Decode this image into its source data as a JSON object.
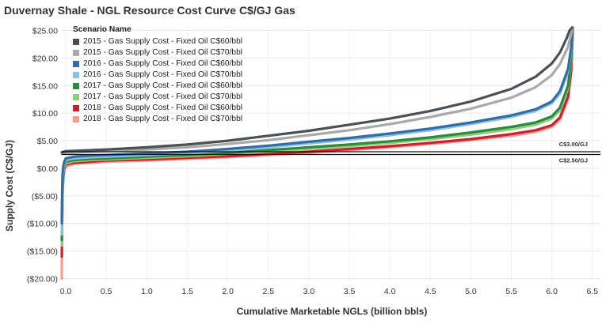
{
  "chart_data": {
    "type": "line",
    "title": "Duvernay Shale - NGL Resource Cost Curve C$/GJ Gas",
    "xlabel": "Cumulative Marketable NGLs (billion bbls)",
    "ylabel": "Supply Cost (C$/GJ)",
    "xlim": [
      -0.05,
      6.6
    ],
    "ylim": [
      -20.5,
      25.5
    ],
    "x_ticks": [
      0.0,
      0.5,
      1.0,
      1.5,
      2.0,
      2.5,
      3.0,
      3.5,
      4.0,
      4.5,
      5.0,
      5.5,
      6.0,
      6.5
    ],
    "x_tick_labels": [
      "0.0",
      "0.5",
      "1.0",
      "1.5",
      "2.0",
      "2.5",
      "3.0",
      "3.5",
      "4.0",
      "4.5",
      "5.0",
      "5.5",
      "6.0",
      "6.5"
    ],
    "y_ticks": [
      -20,
      -15,
      -10,
      -5,
      0,
      5,
      10,
      15,
      20,
      25
    ],
    "y_tick_labels": [
      "($20.00)",
      "($15.00)",
      "($10.00)",
      "($5.00)",
      "$0.00",
      "$5.00",
      "$10.00",
      "$15.00",
      "$20.00",
      "$25.00"
    ],
    "grid": true,
    "legend_title": "Scenario Name",
    "legend_position": "top-left",
    "reference_lines": [
      {
        "value": 3.0,
        "label": "C$3.00/GJ"
      },
      {
        "value": 2.5,
        "label": "C$2.50/GJ"
      }
    ],
    "series": [
      {
        "name": "2015 - Gas Supply Cost - Fixed Oil C$60/bbl",
        "color": "#4a5058",
        "x": [
          -0.05,
          0.0,
          0.5,
          1.0,
          1.5,
          2.0,
          2.5,
          3.0,
          3.5,
          4.0,
          4.5,
          5.0,
          5.5,
          5.8,
          6.0,
          6.1,
          6.18,
          6.22,
          6.25
        ],
        "y": [
          2.9,
          3.1,
          3.4,
          3.8,
          4.3,
          5.0,
          5.9,
          6.8,
          7.9,
          9.0,
          10.4,
          12.1,
          14.4,
          16.6,
          19.0,
          21.0,
          23.5,
          25.0,
          25.5
        ]
      },
      {
        "name": "2015 - Gas Supply Cost - Fixed Oil C$70/bbl",
        "color": "#a9a9a9",
        "x": [
          -0.05,
          0.0,
          0.5,
          1.0,
          1.5,
          2.0,
          2.5,
          3.0,
          3.5,
          4.0,
          4.5,
          5.0,
          5.5,
          5.8,
          6.0,
          6.1,
          6.2,
          6.24,
          6.26
        ],
        "y": [
          2.6,
          2.8,
          3.1,
          3.4,
          3.8,
          4.4,
          5.1,
          6.0,
          6.9,
          8.0,
          9.3,
          10.8,
          12.8,
          14.7,
          16.9,
          18.9,
          22.0,
          24.5,
          25.5
        ]
      },
      {
        "name": "2016 - Gas Supply Cost - Fixed Oil C$60/bbl",
        "color": "#2f6ea5",
        "x": [
          -0.05,
          -0.045,
          -0.04,
          -0.03,
          -0.02,
          0.0,
          0.1,
          0.3,
          0.5,
          1.0,
          1.5,
          2.0,
          2.5,
          3.0,
          3.5,
          4.0,
          4.5,
          5.0,
          5.5,
          5.8,
          6.0,
          6.1,
          6.2,
          6.24,
          6.26
        ],
        "y": [
          -10.0,
          -4.0,
          -1.0,
          0.5,
          1.2,
          1.8,
          2.1,
          2.3,
          2.4,
          2.7,
          3.0,
          3.5,
          4.1,
          4.8,
          5.5,
          6.3,
          7.2,
          8.3,
          9.6,
          10.7,
          12.1,
          14.0,
          18.0,
          22.0,
          25.5
        ]
      },
      {
        "name": "2016 - Gas Supply Cost - Fixed Oil C$70/bbl",
        "color": "#8fbfe3",
        "x": [
          -0.05,
          -0.045,
          -0.04,
          -0.03,
          -0.02,
          0.0,
          0.1,
          0.3,
          0.5,
          1.0,
          1.5,
          2.0,
          2.5,
          3.0,
          3.5,
          4.0,
          4.5,
          5.0,
          5.5,
          5.8,
          6.0,
          6.1,
          6.2,
          6.24,
          6.26
        ],
        "y": [
          -12.0,
          -6.0,
          -2.0,
          0.0,
          0.9,
          1.5,
          1.8,
          2.0,
          2.1,
          2.4,
          2.7,
          3.2,
          3.8,
          4.5,
          5.2,
          6.0,
          6.9,
          8.0,
          9.3,
          10.4,
          11.8,
          13.5,
          17.5,
          21.5,
          25.5
        ]
      },
      {
        "name": "2017 - Gas Supply Cost - Fixed Oil C$60/bbl",
        "color": "#2c8a3c",
        "x": [
          -0.05,
          -0.045,
          -0.04,
          -0.03,
          -0.02,
          0.0,
          0.1,
          0.3,
          0.5,
          1.0,
          1.5,
          2.0,
          2.5,
          3.0,
          3.5,
          4.0,
          4.5,
          5.0,
          5.5,
          5.8,
          6.0,
          6.1,
          6.2,
          6.24,
          6.26
        ],
        "y": [
          -13.0,
          -7.0,
          -3.0,
          -0.5,
          0.6,
          1.2,
          1.5,
          1.7,
          1.8,
          2.1,
          2.4,
          2.8,
          3.3,
          3.8,
          4.3,
          4.9,
          5.6,
          6.5,
          7.5,
          8.3,
          9.4,
          11.0,
          15.0,
          20.0,
          25.5
        ]
      },
      {
        "name": "2017 - Gas Supply Cost - Fixed Oil C$70/bbl",
        "color": "#8fcf79",
        "x": [
          -0.05,
          -0.045,
          -0.04,
          -0.03,
          -0.02,
          0.0,
          0.1,
          0.3,
          0.5,
          1.0,
          1.5,
          2.0,
          2.5,
          3.0,
          3.5,
          4.0,
          4.5,
          5.0,
          5.5,
          5.8,
          6.0,
          6.1,
          6.2,
          6.24,
          6.26
        ],
        "y": [
          -14.0,
          -8.0,
          -3.5,
          -1.0,
          0.3,
          0.9,
          1.3,
          1.5,
          1.6,
          1.9,
          2.2,
          2.6,
          3.0,
          3.5,
          4.0,
          4.6,
          5.3,
          6.1,
          7.1,
          7.9,
          9.0,
          10.5,
          14.5,
          19.5,
          25.5
        ]
      },
      {
        "name": "2018 - Gas Supply Cost - Fixed Oil C$60/bbl",
        "color": "#cc2030",
        "x": [
          -0.05,
          -0.045,
          -0.04,
          -0.03,
          -0.02,
          0.0,
          0.1,
          0.3,
          0.5,
          1.0,
          1.5,
          2.0,
          2.5,
          3.0,
          3.5,
          4.0,
          4.5,
          5.0,
          5.5,
          5.8,
          6.0,
          6.1,
          6.2,
          6.24,
          6.26
        ],
        "y": [
          -16.0,
          -9.0,
          -4.0,
          -1.5,
          0.0,
          0.7,
          1.0,
          1.2,
          1.4,
          1.6,
          1.9,
          2.2,
          2.6,
          3.0,
          3.5,
          4.0,
          4.6,
          5.3,
          6.2,
          6.9,
          7.8,
          9.2,
          13.0,
          18.0,
          25.5
        ]
      },
      {
        "name": "2018 - Gas Supply Cost - Fixed Oil C$70/bbl",
        "color": "#f79b8c",
        "x": [
          -0.05,
          -0.047,
          -0.043,
          -0.035,
          -0.025,
          -0.01,
          0.0,
          0.1,
          0.3,
          0.5,
          1.0,
          1.5,
          2.0,
          2.5,
          3.0,
          3.5,
          4.0,
          4.5,
          5.0,
          5.5,
          5.8,
          6.0,
          6.1,
          6.2,
          6.24,
          6.26
        ],
        "y": [
          -20.0,
          -12.0,
          -6.0,
          -3.0,
          -1.0,
          0.0,
          0.3,
          0.8,
          1.0,
          1.2,
          1.4,
          1.7,
          2.0,
          2.4,
          2.8,
          3.3,
          3.8,
          4.4,
          5.1,
          5.9,
          6.6,
          7.5,
          8.8,
          12.5,
          17.5,
          25.5
        ]
      }
    ]
  }
}
